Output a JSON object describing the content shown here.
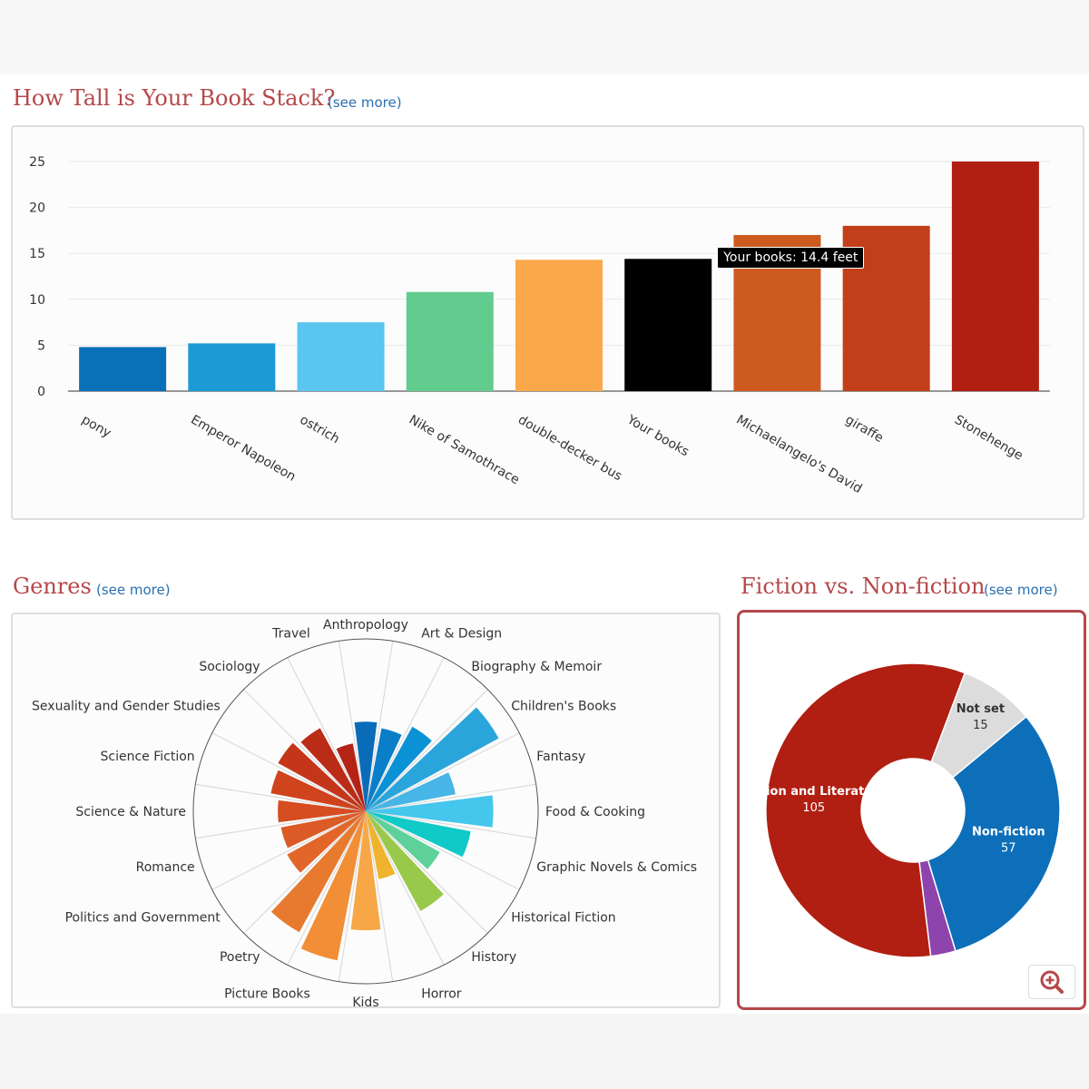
{
  "book_stack": {
    "title": "How Tall is Your Book Stack?",
    "see_more": "(see more)",
    "tooltip": "Your books: 14.4 feet"
  },
  "genres": {
    "title": "Genres",
    "see_more": "(see more)"
  },
  "fiction": {
    "title": "Fiction vs. Non-fiction",
    "see_more": "(see more)"
  },
  "chart_data": [
    {
      "type": "bar",
      "title": "How Tall is Your Book Stack?",
      "categories": [
        "pony",
        "Emperor Napoleon",
        "ostrich",
        "Nike of Samothrace",
        "double-decker bus",
        "Your books",
        "Michaelangelo's David",
        "giraffe",
        "Stonehenge"
      ],
      "values": [
        4.8,
        5.2,
        7.5,
        10.8,
        14.3,
        14.4,
        17,
        18,
        25
      ],
      "colors": [
        "#0a70b8",
        "#1b9ad6",
        "#5bc5f1",
        "#62cc8e",
        "#fba84a",
        "#000000",
        "#cd5a1f",
        "#c23f1a",
        "#b01f12"
      ],
      "yticks": [
        0,
        5,
        10,
        15,
        20,
        25
      ],
      "ylim": [
        0,
        25
      ],
      "xlabel": "",
      "ylabel": "",
      "unit": "feet"
    },
    {
      "type": "polar-area",
      "title": "Genres",
      "categories": [
        "Anthropology",
        "Art & Design",
        "Biography & Memoir",
        "Children's Books",
        "Fantasy",
        "Food & Cooking",
        "Graphic Novels & Comics",
        "Historical Fiction",
        "History",
        "Horror",
        "Kids",
        "Picture Books",
        "Poetry",
        "Politics and Government",
        "Romance",
        "Science & Nature",
        "Science Fiction",
        "Sexuality and Gender Studies",
        "Sociology",
        "Travel"
      ],
      "values": [
        0.52,
        0.49,
        0.56,
        0.88,
        0.53,
        0.74,
        0.62,
        0.49,
        0.66,
        0.4,
        0.69,
        0.88,
        0.8,
        0.52,
        0.5,
        0.51,
        0.56,
        0.58,
        0.55,
        0.4
      ],
      "colors": [
        "#0a6cb8",
        "#0a7ec9",
        "#0b92d4",
        "#2aa5dc",
        "#47b5e6",
        "#45c6ec",
        "#0fcac7",
        "#5ed19a",
        "#99c94a",
        "#f0b32e",
        "#f7a745",
        "#f28e36",
        "#e77a2e",
        "#e2662a",
        "#dc5a26",
        "#d54d20",
        "#cf441d",
        "#c4361a",
        "#bb2c17",
        "#b52316"
      ],
      "radial_scale": "relative"
    },
    {
      "type": "pie",
      "title": "Fiction vs. Non-fiction",
      "labels": [
        "Non-fiction",
        "",
        "Fiction and Literature",
        "Not set"
      ],
      "values": [
        57,
        5,
        105,
        15
      ],
      "display_values": [
        "57",
        "",
        "105",
        "15"
      ],
      "colors": [
        "#0d6fb9",
        "#8e44ad",
        "#b01f12",
        "#dcdcdc"
      ],
      "donut": true
    }
  ]
}
